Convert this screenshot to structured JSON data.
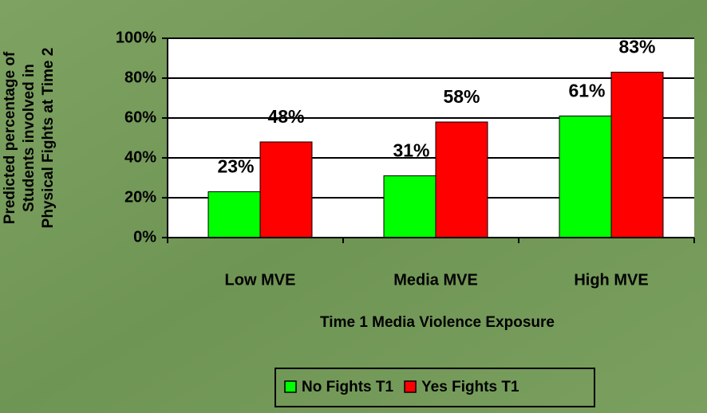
{
  "chart_data": {
    "type": "bar",
    "xlabel": "Time 1 Media Violence Exposure",
    "ylabel": [
      "Predicted percentage of",
      "Students involved in",
      "Physical Fights at Time 2"
    ],
    "categories": [
      "Low MVE",
      "Media MVE",
      "High MVE"
    ],
    "series": [
      {
        "name": "No Fights T1",
        "color": "#00ff00",
        "values": [
          23,
          31,
          61
        ],
        "value_labels": [
          "23%",
          "31%",
          "61%"
        ]
      },
      {
        "name": "Yes Fights T1",
        "color": "#ff0000",
        "values": [
          48,
          58,
          83
        ],
        "value_labels": [
          "48%",
          "58%",
          "83%"
        ]
      }
    ],
    "ylim": [
      0,
      100
    ],
    "yticks": [
      {
        "value": 0,
        "label": "0%"
      },
      {
        "value": 20,
        "label": "20%"
      },
      {
        "value": 40,
        "label": "40%"
      },
      {
        "value": 60,
        "label": "60%"
      },
      {
        "value": 80,
        "label": "80%"
      },
      {
        "value": 100,
        "label": "100%"
      }
    ],
    "grid": true,
    "legend": "bottom"
  }
}
